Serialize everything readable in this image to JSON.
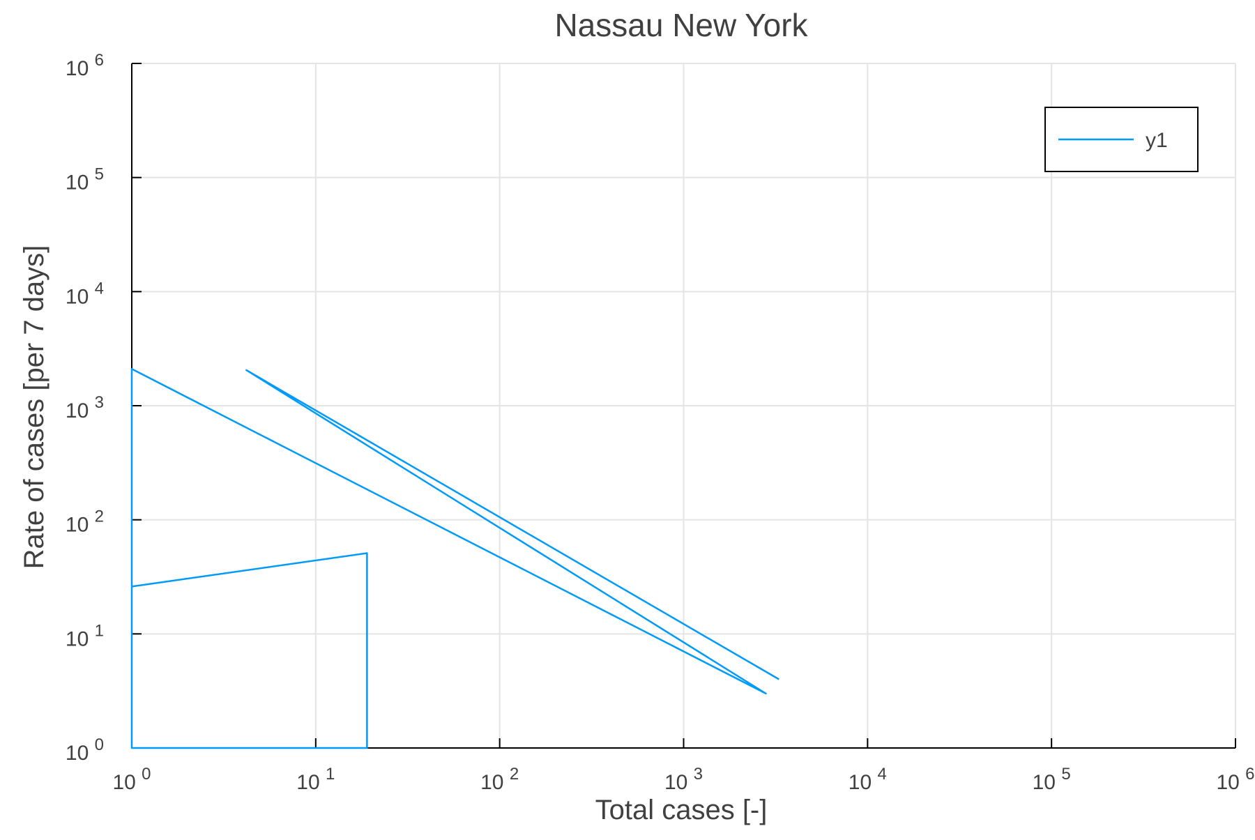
{
  "chart_data": {
    "type": "line",
    "title": "Nassau New York",
    "xlabel": "Total cases [-]",
    "ylabel": "Rate of cases [per 7 days]",
    "xscale": "log",
    "yscale": "log",
    "xlim": [
      1,
      1000000
    ],
    "ylim": [
      1,
      1000000
    ],
    "x_ticks": [
      {
        "base": "10",
        "exp": "0"
      },
      {
        "base": "10",
        "exp": "1"
      },
      {
        "base": "10",
        "exp": "2"
      },
      {
        "base": "10",
        "exp": "3"
      },
      {
        "base": "10",
        "exp": "4"
      },
      {
        "base": "10",
        "exp": "5"
      },
      {
        "base": "10",
        "exp": "6"
      }
    ],
    "y_ticks": [
      {
        "base": "10",
        "exp": "0"
      },
      {
        "base": "10",
        "exp": "1"
      },
      {
        "base": "10",
        "exp": "2"
      },
      {
        "base": "10",
        "exp": "3"
      },
      {
        "base": "10",
        "exp": "4"
      },
      {
        "base": "10",
        "exp": "5"
      },
      {
        "base": "10",
        "exp": "6"
      }
    ],
    "grid": true,
    "legend_position": "top-right",
    "series": [
      {
        "name": "y1",
        "color": "#009af9",
        "x": [
          1,
          1,
          1,
          19,
          19,
          1,
          1,
          2800,
          4.2,
          3300
        ],
        "y": [
          1,
          1,
          26,
          51,
          1,
          1,
          2100,
          3,
          2050,
          4
        ]
      }
    ]
  }
}
